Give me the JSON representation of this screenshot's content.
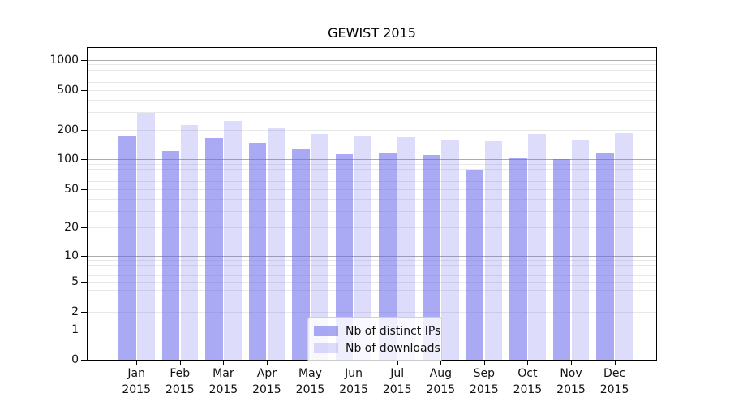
{
  "chart_data": {
    "type": "bar",
    "title": "GEWIST 2015",
    "categories": [
      {
        "label": "Jan",
        "sublabel": "2015"
      },
      {
        "label": "Feb",
        "sublabel": "2015"
      },
      {
        "label": "Mar",
        "sublabel": "2015"
      },
      {
        "label": "Apr",
        "sublabel": "2015"
      },
      {
        "label": "May",
        "sublabel": "2015"
      },
      {
        "label": "Jun",
        "sublabel": "2015"
      },
      {
        "label": "Jul",
        "sublabel": "2015"
      },
      {
        "label": "Aug",
        "sublabel": "2015"
      },
      {
        "label": "Sep",
        "sublabel": "2015"
      },
      {
        "label": "Oct",
        "sublabel": "2015"
      },
      {
        "label": "Nov",
        "sublabel": "2015"
      },
      {
        "label": "Dec",
        "sublabel": "2015"
      }
    ],
    "series": [
      {
        "name": "Nb of distinct IPs",
        "color": "rgba(100,100,235,0.55)",
        "values": [
          170,
          121,
          166,
          146,
          130,
          112,
          116,
          110,
          79,
          104,
          100,
          114
        ]
      },
      {
        "name": "Nb of downloads",
        "color": "rgba(100,100,235,0.22)",
        "values": [
          295,
          224,
          243,
          206,
          182,
          174,
          168,
          157,
          153,
          182,
          160,
          184
        ]
      }
    ],
    "ytick_values": [
      0,
      1,
      2,
      5,
      10,
      20,
      50,
      100,
      200,
      500,
      1000
    ],
    "ytick_labels": [
      "0",
      "1",
      "2",
      "5",
      "10",
      "20",
      "50",
      "100",
      "200",
      "500",
      "1000"
    ],
    "ylim": [
      0,
      1320
    ],
    "yscale": "symlog-log1p",
    "grid": true,
    "grid_major_values": [
      1,
      10,
      100,
      1000
    ],
    "legend_position": "lower center",
    "colors": {
      "axis": "#000000",
      "grid_major": "#ababab",
      "grid_minor": "#e8e8e8",
      "text": "#111111"
    }
  }
}
